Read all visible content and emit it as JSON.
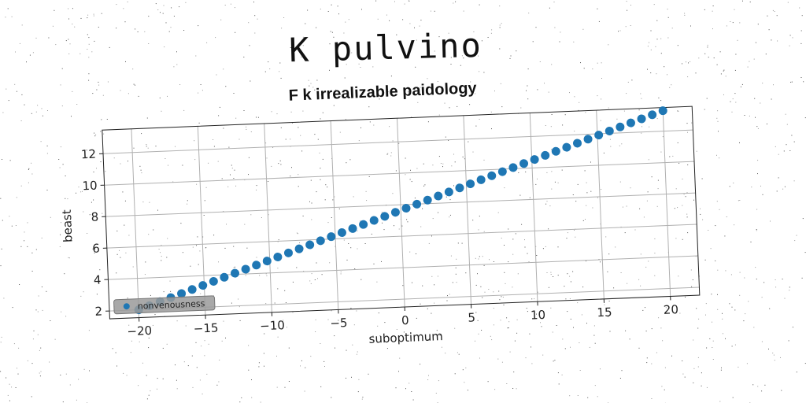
{
  "suptitle": "K pulvino",
  "chart_data": {
    "type": "scatter",
    "title": "F k irrealizable paidology",
    "xlabel": "suboptimum",
    "ylabel": "beast",
    "xlim": [
      -22.2,
      22.2
    ],
    "ylim": [
      1.5,
      13.5
    ],
    "xticks": [
      -20,
      -15,
      -10,
      -5,
      0,
      5,
      10,
      15,
      20
    ],
    "yticks": [
      2,
      4,
      6,
      8,
      10,
      12
    ],
    "xtick_labels": [
      "−20",
      "−15",
      "−10",
      "−5",
      "0",
      "5",
      "10",
      "15",
      "20"
    ],
    "ytick_labels": [
      "2",
      "4",
      "6",
      "8",
      "10",
      "12"
    ],
    "grid": true,
    "legend_position": "lower left",
    "series": [
      {
        "name": "nonvenousness",
        "color": "#1f77b4",
        "marker": "circle",
        "x_start": -20,
        "x_end": 20,
        "n_points": 50,
        "y_start": 2.0,
        "y_end": 13.3
      }
    ]
  }
}
